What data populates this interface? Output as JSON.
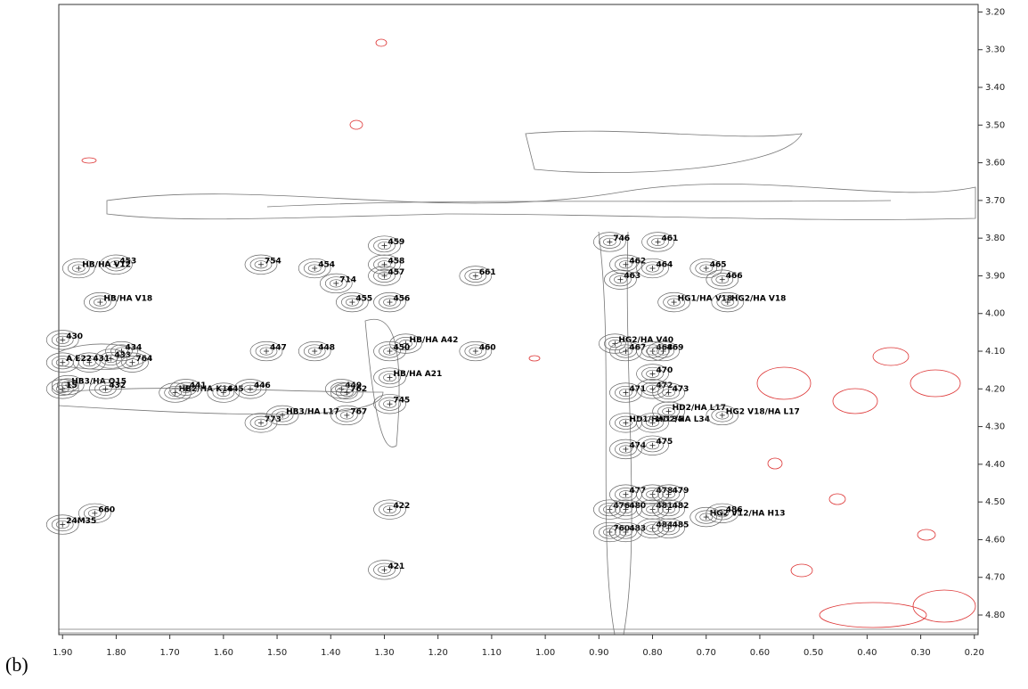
{
  "chart_data": {
    "type": "scatter",
    "panel_label": "(b)",
    "xlim": [
      1.907,
      0.193
    ],
    "ylim": [
      3.18,
      4.852
    ],
    "xticks": [
      {
        "value": 1.9,
        "label": "1.90"
      },
      {
        "value": 1.8,
        "label": "1.80"
      },
      {
        "value": 1.7,
        "label": "1.70"
      },
      {
        "value": 1.6,
        "label": "1.60"
      },
      {
        "value": 1.5,
        "label": "1.50"
      },
      {
        "value": 1.4,
        "label": "1.40"
      },
      {
        "value": 1.3,
        "label": "1.30"
      },
      {
        "value": 1.2,
        "label": "1.20"
      },
      {
        "value": 1.1,
        "label": "1.10"
      },
      {
        "value": 1.0,
        "label": "1.00"
      },
      {
        "value": 0.9,
        "label": "0.90"
      },
      {
        "value": 0.8,
        "label": "0.80"
      },
      {
        "value": 0.7,
        "label": "0.70"
      },
      {
        "value": 0.6,
        "label": "0.60"
      },
      {
        "value": 0.5,
        "label": "0.50"
      },
      {
        "value": 0.4,
        "label": "0.40"
      },
      {
        "value": 0.3,
        "label": "0.30"
      },
      {
        "value": 0.2,
        "label": "0.20"
      }
    ],
    "yticks": [
      {
        "value": 3.2,
        "label": "3.20"
      },
      {
        "value": 3.3,
        "label": "3.30"
      },
      {
        "value": 3.4,
        "label": "3.40"
      },
      {
        "value": 3.5,
        "label": "3.50"
      },
      {
        "value": 3.6,
        "label": "3.60"
      },
      {
        "value": 3.7,
        "label": "3.70"
      },
      {
        "value": 3.8,
        "label": "3.80"
      },
      {
        "value": 3.9,
        "label": "3.90"
      },
      {
        "value": 4.0,
        "label": "4.00"
      },
      {
        "value": 4.1,
        "label": "4.10"
      },
      {
        "value": 4.2,
        "label": "4.20"
      },
      {
        "value": 4.3,
        "label": "4.30"
      },
      {
        "value": 4.4,
        "label": "4.40"
      },
      {
        "value": 4.5,
        "label": "4.50"
      },
      {
        "value": 4.6,
        "label": "4.60"
      },
      {
        "value": 4.7,
        "label": "4.70"
      },
      {
        "value": 4.8,
        "label": "4.80"
      }
    ],
    "color": "#222222",
    "point_labels": [
      "459",
      "458",
      "457",
      "456",
      "455",
      "714",
      "454",
      "754",
      "453",
      "HB/HA V12",
      "HB/HA V18",
      "661",
      "746",
      "461",
      "462",
      "464",
      "465",
      "466",
      "463",
      "HG1/HA V18",
      "HG2/HA V18",
      "HG2/HA V40",
      "467",
      "468",
      "469",
      "470",
      "471",
      "472",
      "473",
      "HD1/HA L34",
      "HD2/HA L34",
      "HD2/HA L17",
      "HG2 V18/HA L17",
      "474",
      "475",
      "477",
      "478",
      "479",
      "476",
      "480",
      "481",
      "482",
      "HG2 V12/HA H13",
      "486",
      "760",
      "483",
      "484",
      "485",
      "HB/HA A42",
      "450",
      "460",
      "448",
      "447",
      "430",
      "434",
      "433",
      "764",
      "431",
      "A E22",
      "HB/HA A21",
      "HB3/HA Q15",
      "15",
      "432",
      "HB2/HA K16",
      "441",
      "445",
      "446",
      "449",
      "762",
      "773",
      "HB3/HA L17",
      "767",
      "745",
      "422",
      "421",
      "660",
      "24M35"
    ],
    "x": [
      1.3,
      1.3,
      1.3,
      1.29,
      1.36,
      1.39,
      1.43,
      1.53,
      1.8,
      1.87,
      1.83,
      1.13,
      0.88,
      0.79,
      0.85,
      0.8,
      0.7,
      0.67,
      0.86,
      0.76,
      0.66,
      0.87,
      0.85,
      0.8,
      0.78,
      0.8,
      0.85,
      0.8,
      0.77,
      0.85,
      0.8,
      0.77,
      0.67,
      0.85,
      0.8,
      0.85,
      0.8,
      0.77,
      0.88,
      0.85,
      0.8,
      0.77,
      0.7,
      0.67,
      0.88,
      0.85,
      0.8,
      0.77,
      1.26,
      1.29,
      1.13,
      1.43,
      1.52,
      1.9,
      1.79,
      1.81,
      1.77,
      1.85,
      1.9,
      1.29,
      1.89,
      1.9,
      1.82,
      1.69,
      1.67,
      1.6,
      1.55,
      1.38,
      1.37,
      1.53,
      1.49,
      1.37,
      1.29,
      1.29,
      1.3,
      1.84,
      1.9
    ],
    "y": [
      3.82,
      3.87,
      3.9,
      3.97,
      3.97,
      3.92,
      3.88,
      3.87,
      3.87,
      3.88,
      3.97,
      3.9,
      3.81,
      3.81,
      3.87,
      3.88,
      3.88,
      3.91,
      3.91,
      3.97,
      3.97,
      4.08,
      4.1,
      4.1,
      4.1,
      4.16,
      4.21,
      4.2,
      4.21,
      4.29,
      4.29,
      4.26,
      4.27,
      4.36,
      4.35,
      4.48,
      4.48,
      4.48,
      4.52,
      4.52,
      4.52,
      4.52,
      4.54,
      4.53,
      4.58,
      4.58,
      4.57,
      4.57,
      4.08,
      4.1,
      4.1,
      4.1,
      4.1,
      4.07,
      4.1,
      4.12,
      4.13,
      4.13,
      4.13,
      4.17,
      4.19,
      4.2,
      4.2,
      4.21,
      4.2,
      4.21,
      4.2,
      4.2,
      4.21,
      4.29,
      4.27,
      4.27,
      4.24,
      4.52,
      4.68,
      4.53,
      4.56
    ]
  }
}
